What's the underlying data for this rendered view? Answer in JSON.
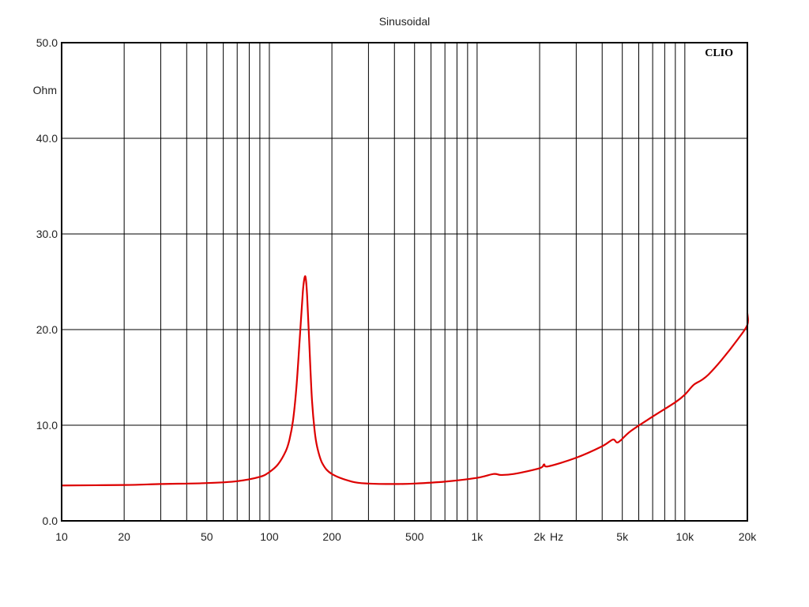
{
  "chart_data": {
    "type": "line",
    "title": "Sinusoidal",
    "ylabel": "Ohm",
    "xlabel": "Hz",
    "x_scale": "log",
    "xlim": [
      10,
      20000
    ],
    "ylim": [
      0,
      50
    ],
    "grid": true,
    "watermark": "CLIO",
    "y_ticks": [
      {
        "value": 0,
        "label": "0.0"
      },
      {
        "value": 10,
        "label": "10.0"
      },
      {
        "value": 20,
        "label": "20.0"
      },
      {
        "value": 30,
        "label": "30.0"
      },
      {
        "value": 40,
        "label": "40.0"
      },
      {
        "value": 50,
        "label": "50.0"
      }
    ],
    "x_ticks": [
      {
        "value": 10,
        "label": "10"
      },
      {
        "value": 20,
        "label": "20"
      },
      {
        "value": 50,
        "label": "50"
      },
      {
        "value": 100,
        "label": "100"
      },
      {
        "value": 200,
        "label": "200"
      },
      {
        "value": 500,
        "label": "500"
      },
      {
        "value": 1000,
        "label": "1k"
      },
      {
        "value": 2000,
        "label": "2k"
      },
      {
        "value": 5000,
        "label": "5k"
      },
      {
        "value": 10000,
        "label": "10k"
      },
      {
        "value": 20000,
        "label": "20k"
      }
    ],
    "series": [
      {
        "color": "#dd0000",
        "x": [
          10,
          20,
          30,
          50,
          70,
          90,
          100,
          110,
          120,
          125,
          130,
          135,
          140,
          145,
          148,
          150,
          152,
          155,
          160,
          165,
          170,
          180,
          200,
          250,
          300,
          400,
          500,
          700,
          1000,
          1200,
          1300,
          1500,
          2000,
          2100,
          2200,
          3000,
          4000,
          4500,
          4700,
          4900,
          5500,
          7000,
          9000,
          10000,
          11000,
          12000,
          13000,
          15000,
          18000,
          20000,
          21000
        ],
        "y": [
          3.7,
          3.75,
          3.85,
          3.95,
          4.15,
          4.6,
          5.1,
          5.9,
          7.3,
          8.5,
          10.5,
          14.0,
          19.0,
          24.0,
          25.5,
          25.2,
          23.5,
          19.5,
          13.0,
          9.5,
          7.7,
          6.0,
          4.9,
          4.1,
          3.9,
          3.85,
          3.9,
          4.1,
          4.5,
          4.9,
          4.8,
          4.9,
          5.5,
          5.9,
          5.7,
          6.6,
          7.8,
          8.5,
          8.2,
          8.4,
          9.4,
          10.9,
          12.4,
          13.2,
          14.2,
          14.7,
          15.3,
          16.8,
          19.0,
          20.5,
          21.7
        ]
      }
    ]
  }
}
